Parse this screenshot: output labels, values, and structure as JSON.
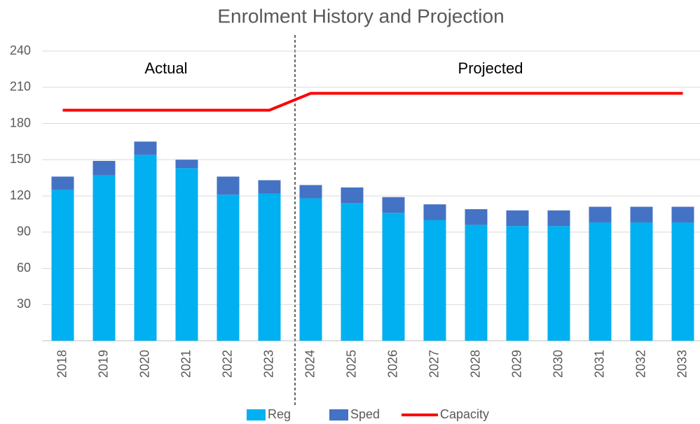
{
  "chart_data": {
    "type": "bar",
    "stacked": true,
    "title": "Enrolment History and Projection",
    "annotations": [
      "Actual",
      "Projected"
    ],
    "categories": [
      "2018",
      "2019",
      "2020",
      "2021",
      "2022",
      "2023",
      "2024",
      "2025",
      "2026",
      "2027",
      "2028",
      "2029",
      "2030",
      "2031",
      "2032",
      "2033"
    ],
    "series": [
      {
        "name": "Reg",
        "type": "bar",
        "color": "#00b0f0",
        "values": [
          125,
          137,
          154,
          143,
          121,
          122,
          118,
          114,
          106,
          100,
          96,
          95,
          95,
          98,
          98,
          98
        ]
      },
      {
        "name": "Sped",
        "type": "bar",
        "color": "#4472c4",
        "values": [
          11,
          12,
          11,
          7,
          15,
          11,
          11,
          13,
          13,
          13,
          13,
          13,
          13,
          13,
          13,
          13
        ]
      },
      {
        "name": "Capacity",
        "type": "line",
        "color": "#ff0000",
        "values": [
          191,
          191,
          191,
          191,
          191,
          191,
          205,
          205,
          205,
          205,
          205,
          205,
          205,
          205,
          205,
          205
        ]
      }
    ],
    "ylim": [
      0,
      240
    ],
    "yticks": [
      30,
      60,
      90,
      120,
      150,
      180,
      210,
      240
    ],
    "grid": true,
    "legend": "bottom"
  }
}
